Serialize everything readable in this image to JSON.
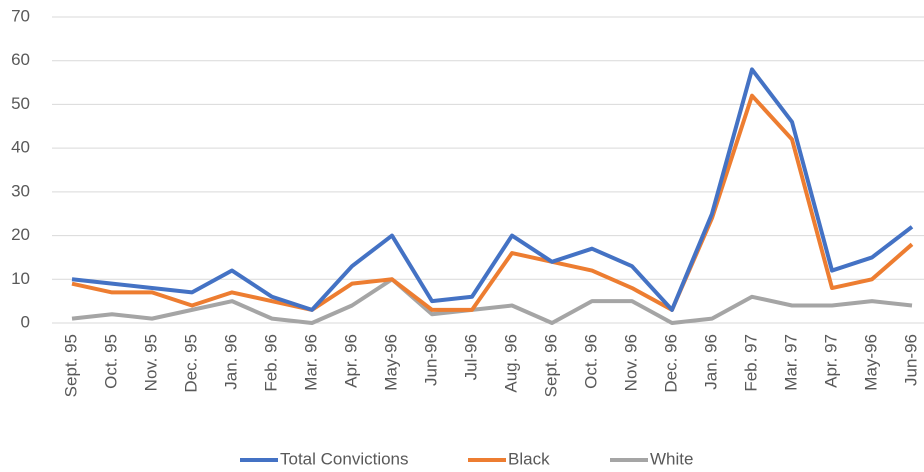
{
  "chart_data": {
    "type": "line",
    "categories": [
      "Sept. 95",
      "Oct. 95",
      "Nov. 95",
      "Dec. 95",
      "Jan. 96",
      "Feb. 96",
      "Mar. 96",
      "Apr. 96",
      "May-96",
      "Jun-96",
      "Jul-96",
      "Aug. 96",
      "Sept. 96",
      "Oct. 96",
      "Nov. 96",
      "Dec. 96",
      "Jan. 96",
      "Feb. 97",
      "Mar. 97",
      "Apr. 97",
      "May-96",
      "Jun-96"
    ],
    "series": [
      {
        "name": "Total Convictions",
        "color": "#4472c4",
        "values": [
          10,
          9,
          8,
          7,
          12,
          6,
          3,
          13,
          20,
          5,
          6,
          20,
          14,
          17,
          13,
          3,
          25,
          58,
          46,
          12,
          15,
          22
        ]
      },
      {
        "name": "Black",
        "color": "#ed7d31",
        "values": [
          9,
          7,
          7,
          4,
          7,
          5,
          3,
          9,
          10,
          3,
          3,
          16,
          14,
          12,
          8,
          3,
          24,
          52,
          42,
          8,
          10,
          18
        ]
      },
      {
        "name": "White",
        "color": "#a5a5a5",
        "values": [
          1,
          2,
          1,
          3,
          5,
          1,
          0,
          4,
          10,
          2,
          3,
          4,
          0,
          5,
          5,
          0,
          1,
          6,
          4,
          4,
          5,
          4
        ]
      }
    ],
    "ylim": [
      0,
      70
    ],
    "yticks": [
      0,
      10,
      20,
      30,
      40,
      50,
      60,
      70
    ],
    "grid": true,
    "legend": "bottom"
  }
}
